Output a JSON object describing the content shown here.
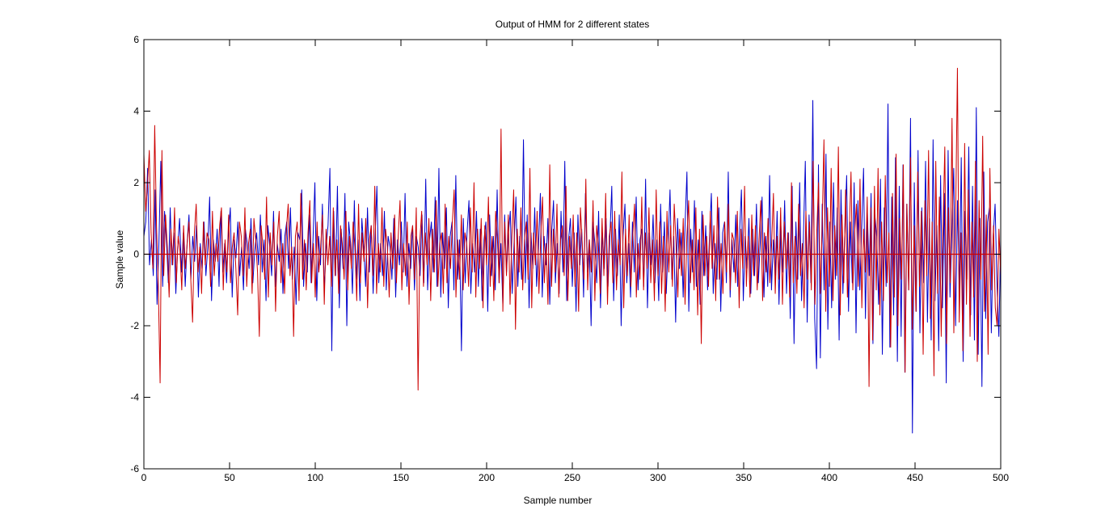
{
  "chart_data": {
    "type": "line",
    "title": "Output of HMM for 2 different states",
    "xlabel": "Sample number",
    "ylabel": "Sample value",
    "xlim": [
      0,
      500
    ],
    "ylim": [
      -6,
      6
    ],
    "xticks": [
      0,
      50,
      100,
      150,
      200,
      250,
      300,
      350,
      400,
      450,
      500
    ],
    "yticks": [
      -6,
      -4,
      -2,
      0,
      2,
      4,
      6
    ],
    "xtick_labels": [
      "0",
      "50",
      "100",
      "150",
      "200",
      "250",
      "300",
      "350",
      "400",
      "450",
      "500"
    ],
    "ytick_labels": [
      "-6",
      "-4",
      "-2",
      "0",
      "2",
      "4",
      "6"
    ],
    "grid": false,
    "legend": "none",
    "reference_line": {
      "y": 0,
      "color": "#cc0000"
    },
    "series": [
      {
        "color": "#0000cc",
        "values": [
          0.5,
          0.9,
          2.4,
          -0.3,
          0.4,
          -0.6,
          1.8,
          -1.4,
          0.3,
          2.6,
          -0.9,
          1.2,
          0.4,
          -0.8,
          1.3,
          -0.3,
          0.6,
          -1.1,
          0.2,
          1.0,
          -0.5,
          0.6,
          -0.9,
          0.3,
          1.1,
          -0.7,
          0.5,
          -0.2,
          0.8,
          -1.2,
          0.3,
          -0.4,
          0.9,
          -0.6,
          0.2,
          1.6,
          -1.3,
          0.4,
          -0.2,
          0.7,
          -0.9,
          1.2,
          -0.5,
          0.3,
          -0.8,
          0.6,
          1.3,
          -1.2,
          0.4,
          -0.1,
          0.9,
          -0.6,
          0.2,
          -1.0,
          0.7,
          0.3,
          -0.4,
          1.0,
          -0.8,
          0.1,
          0.6,
          -0.3,
          1.1,
          -0.5,
          0.4,
          -1.3,
          0.8,
          0.2,
          -0.6,
          1.2,
          -0.9,
          0.3,
          -0.2,
          0.7,
          -1.1,
          0.5,
          0.9,
          -0.4,
          1.3,
          -0.7,
          0.2,
          -1.4,
          0.6,
          0.4,
          1.8,
          -0.9,
          0.3,
          -0.5,
          1.1,
          -0.8,
          0.4,
          2.0,
          -1.3,
          0.5,
          -0.3,
          1.4,
          -1.0,
          0.2,
          0.8,
          2.4,
          -2.7,
          1.2,
          -0.6,
          1.9,
          -1.5,
          0.7,
          -0.4,
          1.7,
          -2.0,
          0.9,
          0.3,
          -1.1,
          1.5,
          -0.7,
          0.4,
          -1.3,
          1.0,
          0.2,
          -0.9,
          1.3,
          -0.5,
          0.8,
          -1.1,
          0.4,
          1.9,
          -0.8,
          0.3,
          -0.6,
          1.2,
          -1.0,
          0.5,
          0.2,
          -0.7,
          1.0,
          -1.2,
          0.4,
          -0.3,
          0.9,
          -0.5,
          1.7,
          -0.9,
          0.3,
          -0.4,
          0.8,
          -1.0,
          0.5,
          0.2,
          -0.6,
          1.1,
          -0.8,
          2.1,
          -1.0,
          0.4,
          0.9,
          -0.5,
          1.6,
          -0.9,
          2.4,
          -1.2,
          0.6,
          -0.4,
          1.3,
          -1.5,
          0.5,
          0.9,
          -1.0,
          2.2,
          -0.7,
          0.4,
          -2.7,
          1.0,
          -0.8,
          0.6,
          1.5,
          -1.1,
          0.3,
          -0.5,
          1.2,
          -0.9,
          0.7,
          -1.3,
          0.4,
          0.9,
          -1.6,
          1.1,
          -0.6,
          0.5,
          -1.0,
          1.8,
          -0.8,
          0.3,
          -1.4,
          1.1,
          -0.5,
          0.6,
          1.2,
          -1.1,
          0.3,
          1.6,
          -0.9,
          0.5,
          -0.7,
          3.2,
          -0.8,
          1.1,
          -1.5,
          0.6,
          -0.4,
          1.3,
          -0.9,
          0.2,
          1.7,
          -1.2,
          0.5,
          -0.3,
          1.0,
          -1.4,
          0.6,
          1.5,
          -0.8,
          0.3,
          -1.1,
          1.2,
          -0.5,
          2.6,
          -1.3,
          0.4,
          1.0,
          -0.9,
          0.6,
          -1.6,
          1.1,
          -0.3,
          0.7,
          -1.2,
          1.7,
          -0.5,
          0.4,
          -2.0,
          0.9,
          0.3,
          -0.8,
          1.2,
          -1.5,
          0.6,
          -0.4,
          1.0,
          -0.9,
          0.5,
          1.9,
          -1.3,
          0.7,
          -0.6,
          1.1,
          -2.0,
          0.5,
          1.4,
          -0.8,
          0.3,
          -1.2,
          0.9,
          -0.5,
          1.6,
          -1.0,
          0.4,
          0.7,
          -0.9,
          2.1,
          -1.5,
          0.6,
          -0.3,
          1.1,
          -0.8,
          0.4,
          -1.3,
          1.4,
          -0.5,
          0.9,
          -1.1,
          0.3,
          1.8,
          -0.7,
          0.5,
          -1.9,
          1.0,
          -0.4,
          0.6,
          -1.2,
          0.8,
          2.3,
          -1.6,
          0.7,
          -0.5,
          1.5,
          -0.9,
          0.4,
          -1.4,
          1.2,
          -0.6,
          0.8,
          -1.0,
          0.5,
          1.7,
          -1.1,
          0.3,
          -0.7,
          1.3,
          -1.6,
          0.6,
          0.9,
          -0.8,
          2.3,
          -1.2,
          0.4,
          -0.5,
          1.1,
          -0.9,
          0.6,
          1.8,
          -1.3,
          0.5,
          -0.4,
          1.0,
          -1.1,
          0.7,
          -0.6,
          1.4,
          -0.8,
          0.3,
          1.6,
          -1.2,
          0.5,
          -0.9,
          2.2,
          -1.0,
          0.4,
          -0.6,
          1.2,
          -1.4,
          0.8,
          -0.5,
          1.5,
          -1.1,
          0.6,
          -1.8,
          1.9,
          -2.5,
          0.9,
          -0.7,
          2.0,
          -1.3,
          0.5,
          2.6,
          -1.9,
          1.1,
          -0.8,
          4.3,
          -1.8,
          -3.2,
          2.5,
          -2.9,
          1.4,
          -1.0,
          2.8,
          -2.1,
          0.9,
          -1.5,
          2.0,
          -0.7,
          1.3,
          -2.4,
          1.8,
          -1.1,
          0.6,
          2.2,
          -1.6,
          0.9,
          -0.8,
          2.0,
          -2.2,
          1.5,
          -1.0,
          0.7,
          2.4,
          -1.8,
          1.2,
          -0.6,
          1.7,
          -2.5,
          1.1,
          0.5,
          -1.4,
          2.1,
          -2.8,
          1.3,
          -0.9,
          4.2,
          -2.6,
          1.6,
          -1.7,
          2.7,
          -3.0,
          1.9,
          -2.3,
          2.5,
          -3.3,
          1.4,
          -1.0,
          3.8,
          -5.0,
          2.0,
          -1.6,
          2.9,
          -2.2,
          1.3,
          -0.8,
          2.6,
          -1.9,
          1.0,
          -2.4,
          3.2,
          -1.3,
          0.8,
          -2.7,
          2.2,
          -1.5,
          1.7,
          -3.6,
          2.9,
          -1.2,
          0.6,
          2.4,
          -2.0,
          1.5,
          -1.1,
          2.7,
          -3.0,
          1.2,
          -0.7,
          3.0,
          -1.7,
          1.9,
          -2.4,
          4.1,
          -2.8,
          1.0,
          -3.7,
          2.3,
          -1.8,
          0.9,
          1.3,
          -2.2,
          0.5,
          1.4,
          -0.8,
          -2.3,
          0.4
        ]
      },
      {
        "color": "#cc0000",
        "values": [
          2.8,
          1.2,
          1.9,
          2.9,
          0.6,
          -0.4,
          3.6,
          0.8,
          -0.9,
          -3.6,
          2.9,
          -0.6,
          1.1,
          0.2,
          -1.2,
          0.7,
          -0.3,
          1.3,
          -0.8,
          0.5,
          0.1,
          -1.0,
          0.8,
          -0.4,
          0.3,
          0.9,
          -0.7,
          -1.9,
          0.6,
          1.4,
          -0.5,
          0.2,
          -1.1,
          0.9,
          -0.3,
          0.6,
          0.4,
          -0.9,
          1.2,
          -0.6,
          0.3,
          -0.2,
          0.8,
          1.3,
          -1.0,
          0.4,
          -0.5,
          1.1,
          -0.8,
          0.2,
          0.6,
          -0.4,
          -1.7,
          0.9,
          0.5,
          -0.6,
          1.3,
          -0.9,
          0.3,
          0.7,
          -1.1,
          1.0,
          0.4,
          -0.5,
          -2.3,
          0.8,
          0.2,
          -0.7,
          1.6,
          -1.2,
          0.6,
          -0.3,
          0.9,
          -1.6,
          0.5,
          1.2,
          -0.8,
          0.3,
          -1.1,
          0.7,
          1.4,
          -0.6,
          0.2,
          -2.3,
          0.5,
          0.9,
          -1.3,
          1.7,
          -0.7,
          0.4,
          -1.0,
          0.6,
          1.5,
          -0.8,
          0.3,
          -1.2,
          0.9,
          -0.5,
          0.2,
          1.1,
          -1.4,
          0.7,
          -0.3,
          0.5,
          -0.9,
          1.3,
          -0.6,
          0.4,
          -1.1,
          0.8,
          0.3,
          -0.7,
          1.2,
          -1.0,
          0.5,
          -0.4,
          0.9,
          0.2,
          -1.3,
          1.4,
          -0.8,
          0.6,
          -0.2,
          1.0,
          -1.5,
          0.4,
          0.8,
          -0.6,
          1.9,
          -1.1,
          0.3,
          -0.5,
          1.3,
          -0.9,
          0.7,
          0.2,
          -1.2,
          0.6,
          -0.4,
          1.1,
          -0.8,
          0.5,
          1.5,
          -1.0,
          0.3,
          -0.6,
          0.9,
          -1.4,
          0.5,
          0.8,
          -0.7,
          1.3,
          -3.8,
          0.4,
          1.2,
          -0.9,
          0.6,
          -0.3,
          1.0,
          -1.3,
          0.7,
          -0.5,
          1.5,
          -0.9,
          0.3,
          0.6,
          -1.1,
          1.4,
          -0.8,
          0.5,
          -0.4,
          0.9,
          1.8,
          -1.2,
          0.4,
          -0.7,
          1.1,
          -1.0,
          0.6,
          0.3,
          -0.9,
          1.3,
          -0.5,
          2.0,
          -1.2,
          0.7,
          -0.4,
          1.0,
          -1.5,
          0.8,
          -0.3,
          1.6,
          -0.9,
          0.5,
          -1.3,
          1.2,
          0.4,
          -0.8,
          3.5,
          -1.6,
          0.9,
          -0.6,
          1.1,
          -1.4,
          0.5,
          1.8,
          -2.1,
          0.7,
          -0.5,
          1.3,
          -1.0,
          0.4,
          0.9,
          -0.7,
          2.4,
          -1.5,
          0.6,
          -0.3,
          1.2,
          -1.1,
          0.5,
          1.6,
          -0.8,
          0.3,
          -1.4,
          2.5,
          -0.9,
          0.7,
          -0.5,
          1.4,
          -1.2,
          0.4,
          0.8,
          -0.6,
          1.9,
          -1.3,
          0.5,
          -0.4,
          1.1,
          -0.9,
          0.6,
          -1.6,
          1.3,
          0.3,
          -0.7,
          2.1,
          -1.0,
          0.4,
          -0.5,
          1.5,
          -1.3,
          0.8,
          0.2,
          -1.1,
          1.0,
          -0.6,
          1.7,
          -1.4,
          0.5,
          0.9,
          -0.8,
          1.2,
          -1.0,
          0.4,
          -0.3,
          2.3,
          -1.5,
          0.7,
          -0.6,
          1.1,
          -0.9,
          0.5,
          1.4,
          -1.2,
          0.3,
          -0.7,
          1.6,
          -1.0,
          0.6,
          -0.4,
          1.3,
          -0.8,
          0.4,
          -1.3,
          1.8,
          -0.6,
          0.9,
          -1.1,
          0.5,
          -1.6,
          1.2,
          -0.5,
          0.8,
          -0.9,
          1.4,
          0.3,
          -1.2,
          0.7,
          -0.6,
          1.0,
          -1.4,
          0.5,
          1.5,
          -0.8,
          0.4,
          -1.0,
          1.3,
          -1.7,
          0.7,
          -2.5,
          1.1,
          -0.6,
          0.5,
          -0.9,
          1.2,
          -0.4,
          0.8,
          -1.3,
          1.6,
          -0.7,
          0.3,
          -1.1,
          0.9,
          -0.5,
          1.4,
          -1.0,
          0.6,
          0.4,
          -0.8,
          1.2,
          -1.5,
          0.7,
          -0.4,
          1.9,
          -0.9,
          0.5,
          -1.2,
          1.1,
          -0.6,
          0.8,
          -1.0,
          0.4,
          1.5,
          -1.3,
          0.6,
          -0.5,
          1.0,
          -0.8,
          0.3,
          1.7,
          -1.1,
          0.5,
          -0.7,
          1.3,
          -1.4,
          0.9,
          -0.4,
          0.6,
          -1.2,
          2.0,
          -0.8,
          0.5,
          -1.1,
          1.4,
          -0.6,
          0.3,
          -1.5,
          1.2,
          -0.7,
          0.9,
          -1.0,
          2.6,
          -1.4,
          0.6,
          2.0,
          -1.1,
          0.7,
          3.2,
          -1.6,
          1.3,
          -0.9,
          2.4,
          -1.3,
          0.8,
          -0.6,
          3.0,
          -1.7,
          1.1,
          -0.8,
          1.8,
          -1.2,
          0.5,
          2.3,
          -1.0,
          0.6,
          1.4,
          -0.9,
          2.1,
          -1.5,
          0.7,
          -0.5,
          1.6,
          -3.7,
          1.3,
          -2.4,
          1.9,
          -1.0,
          2.4,
          -1.7,
          0.9,
          -1.3,
          2.2,
          -0.8,
          0.6,
          -2.6,
          1.7,
          -1.2,
          2.8,
          -2.0,
          1.0,
          -0.7,
          2.5,
          -3.3,
          1.4,
          -1.0,
          2.7,
          -2.1,
          0.8,
          -1.6,
          2.3,
          -0.9,
          1.2,
          -2.8,
          1.5,
          -0.6,
          2.9,
          -1.8,
          0.9,
          -3.4,
          2.6,
          -1.1,
          1.6,
          -2.3,
          0.7,
          3.0,
          -2.5,
          1.3,
          -0.8,
          3.8,
          -2.2,
          1.0,
          5.2,
          -1.9,
          0.6,
          -2.7,
          3.1,
          -1.4,
          1.8,
          -2.3,
          0.9,
          -1.2,
          2.6,
          -3.0,
          1.5,
          -0.7,
          3.3,
          -1.6,
          1.1,
          -2.8,
          2.4,
          -1.0,
          0.8,
          -1.5,
          -2.0,
          0.7,
          -0.6
        ]
      }
    ]
  }
}
